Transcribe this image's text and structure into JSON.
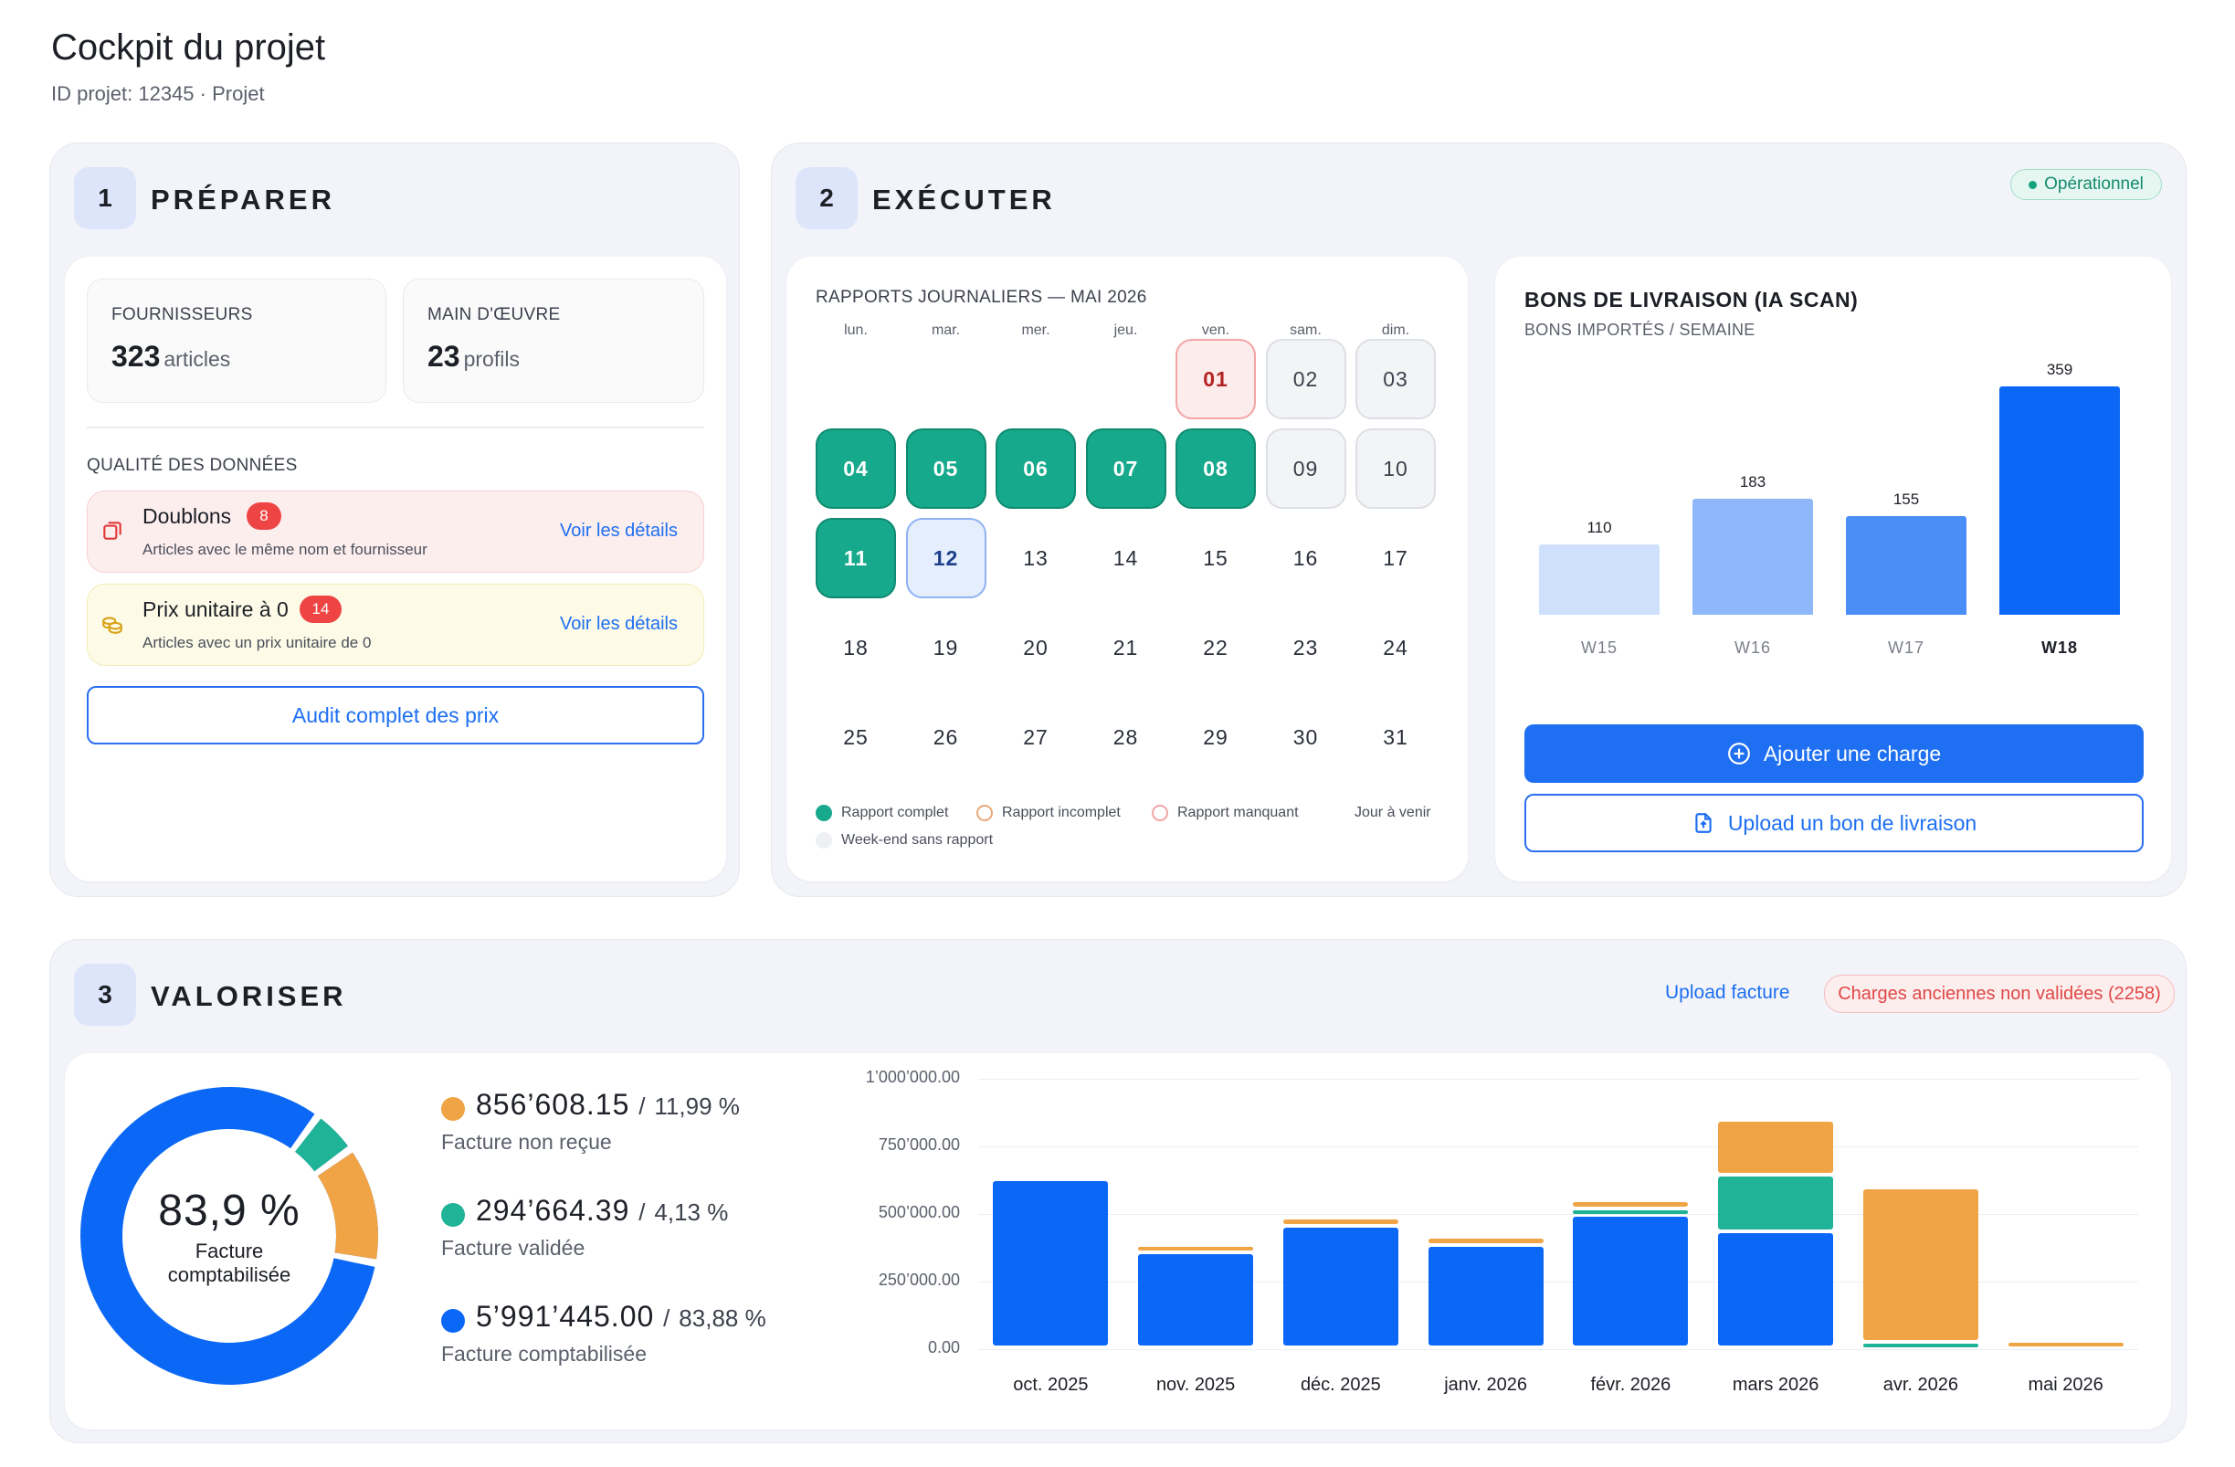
{
  "page": {
    "title": "Cockpit du projet",
    "subtitle": "ID projet: 12345 · Projet"
  },
  "preparer": {
    "number": "1",
    "title": "PRÉPARER",
    "suppliers": {
      "label": "FOURNISSEURS",
      "value": "323",
      "unit": "articles"
    },
    "labor": {
      "label": "MAIN D'ŒUVRE",
      "value": "23",
      "unit": "profils"
    },
    "quality_title": "QUALITÉ DES DONNÉES",
    "duplicates": {
      "title": "Doublons",
      "count": "8",
      "description": "Articles avec le même nom et fournisseur",
      "link": "Voir les détails"
    },
    "zero_price": {
      "title": "Prix unitaire à 0",
      "count": "14",
      "description": "Articles avec un prix unitaire de 0",
      "link": "Voir les détails"
    },
    "audit_button": "Audit complet des prix"
  },
  "executer": {
    "number": "2",
    "title": "EXÉCUTER",
    "status": "Opérationnel",
    "calendar": {
      "title": "RAPPORTS JOURNALIERS — MAI 2026",
      "weekdays": [
        "lun.",
        "mar.",
        "mer.",
        "jeu.",
        "ven.",
        "sam.",
        "dim."
      ],
      "days": [
        {
          "label": "01",
          "state": "missing"
        },
        {
          "label": "02",
          "state": "weekend"
        },
        {
          "label": "03",
          "state": "weekend"
        },
        {
          "label": "04",
          "state": "complete"
        },
        {
          "label": "05",
          "state": "complete"
        },
        {
          "label": "06",
          "state": "complete"
        },
        {
          "label": "07",
          "state": "complete"
        },
        {
          "label": "08",
          "state": "complete"
        },
        {
          "label": "09",
          "state": "weekend"
        },
        {
          "label": "10",
          "state": "weekend"
        },
        {
          "label": "11",
          "state": "complete"
        },
        {
          "label": "12",
          "state": "today"
        },
        {
          "label": "13",
          "state": "future"
        },
        {
          "label": "14",
          "state": "future"
        },
        {
          "label": "15",
          "state": "future"
        },
        {
          "label": "16",
          "state": "future"
        },
        {
          "label": "17",
          "state": "future"
        },
        {
          "label": "18",
          "state": "future"
        },
        {
          "label": "19",
          "state": "future"
        },
        {
          "label": "20",
          "state": "future"
        },
        {
          "label": "21",
          "state": "future"
        },
        {
          "label": "22",
          "state": "future"
        },
        {
          "label": "23",
          "state": "future"
        },
        {
          "label": "24",
          "state": "future"
        },
        {
          "label": "25",
          "state": "future"
        },
        {
          "label": "26",
          "state": "future"
        },
        {
          "label": "27",
          "state": "future"
        },
        {
          "label": "28",
          "state": "future"
        },
        {
          "label": "29",
          "state": "future"
        },
        {
          "label": "30",
          "state": "future"
        },
        {
          "label": "31",
          "state": "future"
        }
      ],
      "first_weekday_index": 4,
      "legend": {
        "complete": "Rapport complet",
        "incomplete": "Rapport incomplet",
        "missing": "Rapport manquant",
        "future": "Jour à venir",
        "weekend": "Week-end sans rapport"
      }
    },
    "deliveries": {
      "title": "BONS DE LIVRAISON (IA SCAN)",
      "subtitle": "BONS IMPORTÉS / SEMAINE",
      "add_button": "Ajouter une charge",
      "upload_button": "Upload un bon de livraison"
    }
  },
  "valoriser": {
    "number": "3",
    "title": "VALORISER",
    "upload_link": "Upload facture",
    "pending_badge": "Charges anciennes non validées (2258)",
    "donut": {
      "percent": "83,9 %",
      "label_line1": "Facture",
      "label_line2": "comptabilisée"
    },
    "legend": [
      {
        "value": "856’608.15",
        "percent": "11,99 %",
        "label": "Facture non reçue",
        "color": "#f0a445"
      },
      {
        "value": "294’664.39",
        "percent": "4,13 %",
        "label": "Facture validée",
        "color": "#1fb397"
      },
      {
        "value": "5’991’445.00",
        "percent": "83,88 %",
        "label": "Facture comptabilisée",
        "color": "#0b67f5"
      }
    ]
  },
  "colors": {
    "blue": "#0b67f5",
    "green": "#1fb397",
    "orange": "#f0a445",
    "danger": "#ef4444",
    "link": "#1d6ff2"
  },
  "chart_data": [
    {
      "type": "bar",
      "title": "BONS DE LIVRAISON (IA SCAN)",
      "subtitle": "BONS IMPORTÉS / SEMAINE",
      "categories": [
        "W15",
        "W16",
        "W17",
        "W18"
      ],
      "values": [
        110,
        183,
        155,
        359
      ],
      "highlight": "W18",
      "colors": [
        "#cfe0fd",
        "#8fb8fb",
        "#4b8ef7",
        "#0b67f5"
      ]
    },
    {
      "type": "bar",
      "stacked": true,
      "categories": [
        "oct. 2025",
        "nov. 2025",
        "déc. 2025",
        "janv. 2026",
        "févr. 2026",
        "mars 2026",
        "avr. 2026",
        "mai 2026"
      ],
      "series": [
        {
          "name": "Facture comptabilisée",
          "color": "#0b67f5",
          "values": [
            620000,
            350000,
            450000,
            380000,
            490000,
            430000,
            0,
            0
          ]
        },
        {
          "name": "Facture validée",
          "color": "#1fb397",
          "values": [
            0,
            0,
            0,
            0,
            25000,
            210000,
            20000,
            0
          ]
        },
        {
          "name": "Facture non reçue",
          "color": "#f0a445",
          "values": [
            0,
            30000,
            30000,
            30000,
            30000,
            200000,
            570000,
            25000
          ]
        }
      ],
      "yticks": [
        "0.00",
        "250’000.00",
        "500’000.00",
        "750’000.00",
        "1’000’000.00"
      ],
      "ylim": [
        0,
        1000000
      ],
      "grid": true
    }
  ]
}
